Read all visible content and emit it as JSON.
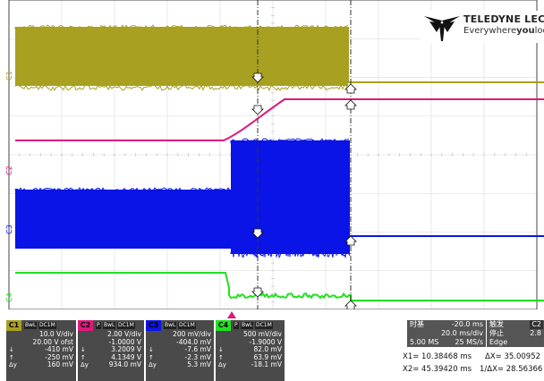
{
  "brand": {
    "name": "TELEDYNE LECROY",
    "tagline_a": "Everywhere",
    "tagline_b": "you",
    "tagline_c": "look"
  },
  "colors": {
    "c1": "#a8a020",
    "c2": "#e0187c",
    "c3": "#0a14e6",
    "c4": "#21e021",
    "grid": "#d8d8d8"
  },
  "channel_labels": {
    "c1": "C1",
    "c2": "C2",
    "c3": "C3",
    "c4": "C4"
  },
  "channels": [
    {
      "id": "C1",
      "tags": [
        "BwL",
        "DC1M"
      ],
      "rows": [
        [
          "",
          "10.0 V/div"
        ],
        [
          "",
          "20.00 V ofst"
        ],
        [
          "↓",
          "-410 mV"
        ],
        [
          "↑",
          "-250 mV"
        ],
        [
          "Δy",
          "160 mV"
        ]
      ]
    },
    {
      "id": "C2",
      "tags": [
        "P",
        "BwL",
        "DC1M"
      ],
      "rows": [
        [
          "",
          "2.00 V/div"
        ],
        [
          "",
          "-1.0000 V"
        ],
        [
          "↓",
          "3.2009 V"
        ],
        [
          "↑",
          "4.1349 V"
        ],
        [
          "Δy",
          "934.0 mV"
        ]
      ]
    },
    {
      "id": "C3",
      "tags": [
        "BwL",
        "DC1M"
      ],
      "rows": [
        [
          "",
          "200 mV/div"
        ],
        [
          "",
          "-404.0 mV"
        ],
        [
          "↓",
          "-7.6 mV"
        ],
        [
          "↑",
          "-2.3 mV"
        ],
        [
          "Δy",
          "5.3 mV"
        ]
      ]
    },
    {
      "id": "C4",
      "tags": [
        "P",
        "BwL",
        "DC1M"
      ],
      "rows": [
        [
          "",
          "500 mV/div"
        ],
        [
          "",
          "-1.9000 V"
        ],
        [
          "↓",
          "82.0 mV"
        ],
        [
          "↑",
          "63.9 mV"
        ],
        [
          "Δy",
          "-18.1 mV"
        ]
      ]
    }
  ],
  "timebase": {
    "title": "时基",
    "delay": "-20.0 ms",
    "scale": "20.0 ms/div",
    "samples": "5.00 MS",
    "rate": "25 MS/s"
  },
  "trigger": {
    "title": "触发",
    "ch": "C2",
    "mode": "停止",
    "value": "2.8",
    "type": "Edge"
  },
  "cursors": {
    "x1": "X1=  10.38468 ms",
    "dx": "ΔX=  35.00952",
    "x2": "X2=  45.39420 ms",
    "inv": "1/ΔX=  28.56366"
  }
}
